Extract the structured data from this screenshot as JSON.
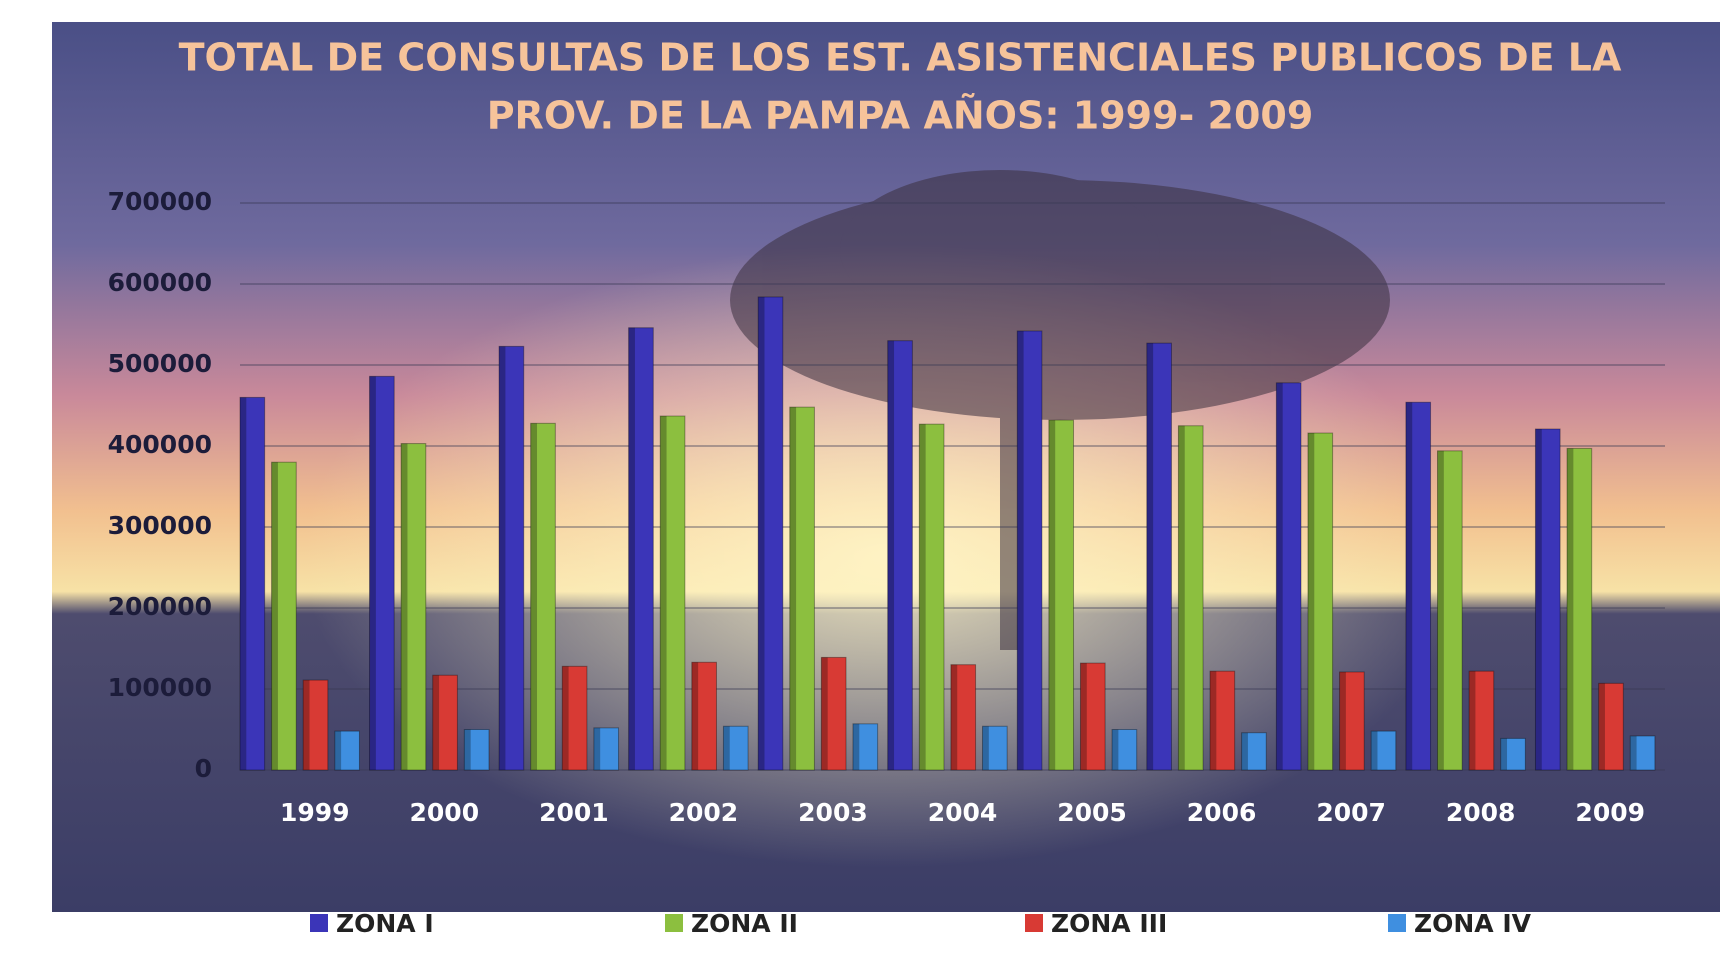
{
  "chart_data": {
    "type": "bar",
    "title": [
      "TOTAL DE CONSULTAS DE LOS EST. ASISTENCIALES PUBLICOS DE LA",
      "PROV. DE LA PAMPA AÑOS:  1999- 2009"
    ],
    "categories": [
      "1999",
      "2000",
      "2001",
      "2002",
      "2003",
      "2004",
      "2005",
      "2006",
      "2007",
      "2008",
      "2009"
    ],
    "series": [
      {
        "name": "ZONA I",
        "color": "#3b35b8",
        "values": [
          460000,
          486000,
          523000,
          546000,
          584000,
          530000,
          542000,
          527000,
          478000,
          454000,
          421000
        ]
      },
      {
        "name": "ZONA II",
        "color": "#8cbf3f",
        "values": [
          380000,
          403000,
          428000,
          437000,
          448000,
          427000,
          432000,
          425000,
          416000,
          394000,
          397000
        ]
      },
      {
        "name": "ZONA III",
        "color": "#d83a34",
        "values": [
          111000,
          117000,
          128000,
          133000,
          139000,
          130000,
          132000,
          122000,
          121000,
          122000,
          107000
        ]
      },
      {
        "name": "ZONA IV",
        "color": "#3f8fe0",
        "values": [
          48000,
          50000,
          52000,
          54000,
          57000,
          54000,
          50000,
          46000,
          48000,
          39000,
          42000
        ]
      }
    ],
    "ylim": [
      0,
      700000
    ],
    "yticks": [
      0,
      100000,
      200000,
      300000,
      400000,
      500000,
      600000,
      700000
    ],
    "grid": true
  }
}
